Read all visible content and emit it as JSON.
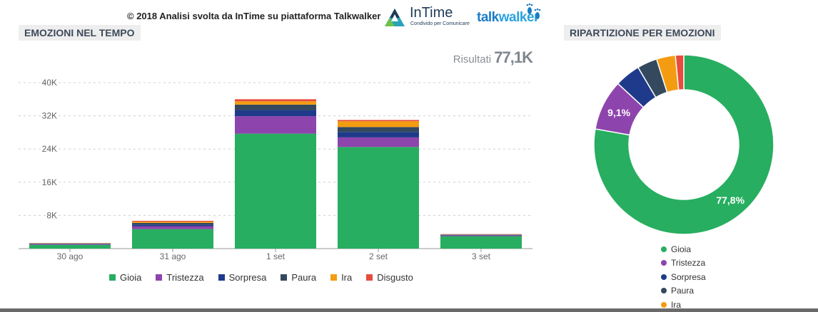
{
  "header": {
    "copyright": "© 2018  Analisi svolta da InTime su piattaforma Talkwalker",
    "logo_intime": "InTime",
    "logo_intime_tagline": "Condivido per Comunicare",
    "logo_talk_a": "talk",
    "logo_talk_b": "walker"
  },
  "panels": {
    "left_title": "EMOZIONI NEL TEMPO",
    "right_title": "RIPARTIZIONE PER EMOZIONI",
    "result_label": "Risultati",
    "result_value": "77,1K"
  },
  "colors": {
    "Gioia": "#27ae60",
    "Tristezza": "#8e44ad",
    "Sorpresa": "#1f3a8a",
    "Paura": "#34495e",
    "Ira": "#f39c12",
    "Disgusto": "#e74c3c"
  },
  "chart_data": [
    {
      "type": "bar",
      "stacked": true,
      "title": "EMOZIONI NEL TEMPO",
      "categories": [
        "30 ago",
        "31 ago",
        "1 set",
        "2 set",
        "3 set"
      ],
      "ylim": [
        0,
        40000
      ],
      "yticks": [
        8000,
        16000,
        24000,
        32000,
        40000
      ],
      "ytick_labels": [
        "8K",
        "16K",
        "24K",
        "32K",
        "40K"
      ],
      "grid": true,
      "legend": "bottom",
      "series": [
        {
          "name": "Gioia",
          "values": [
            900,
            4700,
            27700,
            24500,
            3000
          ]
        },
        {
          "name": "Tristezza",
          "values": [
            150,
            700,
            4200,
            2300,
            200
          ]
        },
        {
          "name": "Sorpresa",
          "values": [
            100,
            400,
            1500,
            1300,
            100
          ]
        },
        {
          "name": "Paura",
          "values": [
            100,
            400,
            1300,
            1200,
            100
          ]
        },
        {
          "name": "Ira",
          "values": [
            50,
            300,
            800,
            1400,
            50
          ]
        },
        {
          "name": "Disgusto",
          "values": [
            50,
            200,
            500,
            300,
            50
          ]
        }
      ]
    },
    {
      "type": "pie",
      "donut": true,
      "title": "RIPARTIZIONE PER EMOZIONI",
      "legend": "bottom",
      "labels": [
        "Gioia",
        "Tristezza",
        "Sorpresa",
        "Paura",
        "Ira",
        "Disgusto"
      ],
      "values": [
        77.8,
        9.1,
        4.6,
        3.6,
        3.4,
        1.5
      ],
      "data_labels": {
        "Gioia": "77,8%",
        "Tristezza": "9,1%"
      }
    }
  ],
  "legend_right_items": [
    "Gioia",
    "Tristezza",
    "Sorpresa",
    "Paura",
    "Ira"
  ]
}
